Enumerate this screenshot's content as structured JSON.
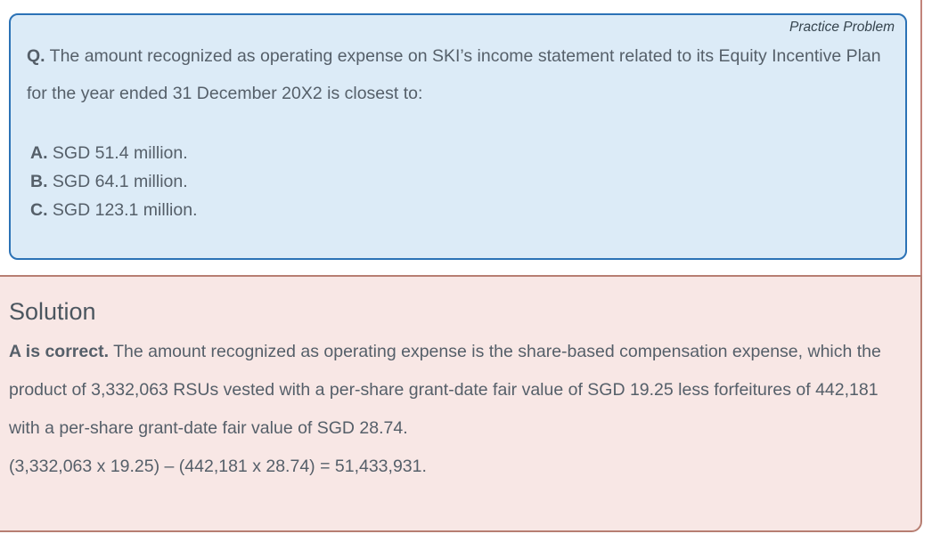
{
  "practice_problem": {
    "label": "Practice Problem",
    "question_prefix": "Q.",
    "question_text": "The amount recognized as operating expense on SKI’s income statement related to its Equity Incentive Plan for the year ended 31 December 20X2 is closest to:",
    "options": [
      {
        "letter": "A.",
        "text": "SGD 51.4 million."
      },
      {
        "letter": "B.",
        "text": "SGD 64.1 million."
      },
      {
        "letter": "C.",
        "text": "SGD 123.1 million."
      }
    ]
  },
  "solution": {
    "heading": "Solution",
    "answer_prefix": "A is correct.",
    "explanation": "The amount recognized as operating expense is the share-based compensation expense, which the product of 3,332,063 RSUs vested with a per-share grant-date fair value of SGD 19.25 less forfeitures of 442,181 with a per-share grant-date fair value of SGD 28.74.",
    "formula": "(3,332,063 x 19.25) – (442,181 x 28.74) = 51,433,931."
  },
  "colors": {
    "question_border": "#2b72b6",
    "question_bg": "#dcebf7",
    "solution_border": "#b77e72",
    "solution_bg": "#f8e7e5",
    "page_edge_line": "#c2837a",
    "text": "#555f69",
    "label_text": "#36444e",
    "heading_text": "#4b565f"
  }
}
